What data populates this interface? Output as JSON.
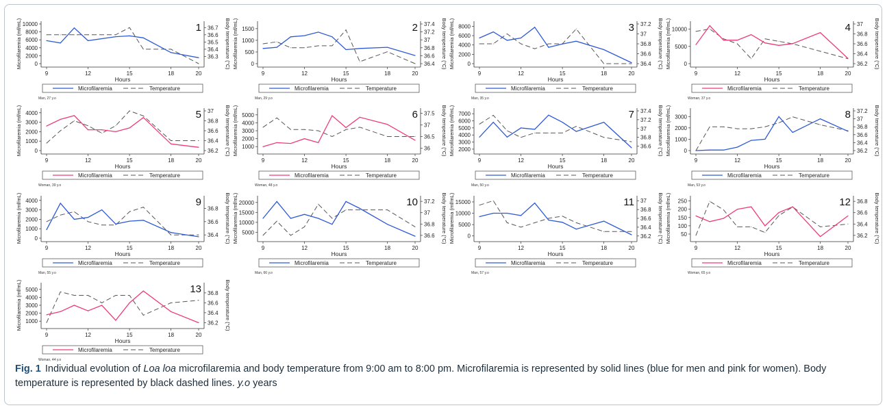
{
  "figure": {
    "caption_label": "Fig. 1",
    "caption_text_1": "Individual evolution of ",
    "caption_species": "Loa loa",
    "caption_text_2": " microfilaremia and body temperature from 9:00 am to 8:00 pm. Microfilaremia is represented by solid lines (blue for men and pink for women). Body temperature is represented by black dashed lines. ",
    "caption_yo": "y.o",
    "caption_text_3": " years"
  },
  "colors": {
    "men": "#2d59d6",
    "women": "#ef3a7a",
    "temperature": "#555555"
  },
  "chart_data": [
    {
      "type": "line",
      "panel": "1",
      "subject": "Man, 27 y.o",
      "sex": "man",
      "xlabel": "Hours",
      "ylabel": "Microfilaremia (mf/mL)",
      "y2label": "Body temperature (°C)",
      "legend": [
        "Microfilaremia",
        "Temperature"
      ],
      "x": [
        9,
        10,
        11,
        12,
        14,
        15,
        16,
        18,
        20
      ],
      "xticks": [
        9,
        12,
        15,
        18,
        20
      ],
      "ylim": [
        0,
        10000
      ],
      "yticks": [
        0,
        2000,
        4000,
        6000,
        8000,
        10000
      ],
      "y2lim": [
        36.2,
        36.75
      ],
      "y2ticks": [
        36.3,
        36.4,
        36.5,
        36.6,
        36.7
      ],
      "series": [
        {
          "name": "Microfilaremia",
          "values": [
            5800,
            5200,
            9000,
            5800,
            6800,
            7000,
            6500,
            2800,
            1500
          ]
        },
        {
          "name": "Temperature",
          "values": [
            36.6,
            36.6,
            36.6,
            36.6,
            36.6,
            36.7,
            36.4,
            36.4,
            36.2
          ]
        }
      ]
    },
    {
      "type": "line",
      "panel": "2",
      "subject": "Man, 29 y.o",
      "sex": "man",
      "xlabel": "Hours",
      "ylabel": "Microfilaremia (mf/mL)",
      "y2label": "Body temperature (°C)",
      "legend": [
        "Microfilaremia",
        "Temperature"
      ],
      "x": [
        9,
        10,
        11,
        12,
        13,
        14,
        15,
        16,
        18,
        20
      ],
      "xticks": [
        9,
        12,
        15,
        18,
        20
      ],
      "ylim": [
        0,
        1700
      ],
      "yticks": [
        0,
        500,
        1000,
        1500
      ],
      "y2lim": [
        36.4,
        37.4
      ],
      "y2ticks": [
        36.4,
        36.6,
        36.8,
        37,
        37.2,
        37.4
      ],
      "series": [
        {
          "name": "Microfilaremia",
          "values": [
            650,
            700,
            1150,
            1200,
            1350,
            1150,
            600,
            650,
            700,
            350
          ]
        },
        {
          "name": "Temperature",
          "values": [
            36.9,
            36.95,
            36.8,
            36.8,
            36.85,
            36.85,
            37.25,
            36.45,
            36.7,
            36.4
          ]
        }
      ]
    },
    {
      "type": "line",
      "panel": "3",
      "subject": "Man, 35 y.o",
      "sex": "man",
      "xlabel": "Hours",
      "ylabel": "Microfilaremia (mf/mL)",
      "y2label": "Body temperature (°C)",
      "legend": [
        "Microfilaremia",
        "Temperature"
      ],
      "x": [
        9,
        10,
        11,
        12,
        13,
        14,
        15,
        16,
        18,
        20
      ],
      "xticks": [
        9,
        12,
        15,
        18,
        20
      ],
      "ylim": [
        0,
        8500
      ],
      "yticks": [
        0,
        2000,
        4000,
        6000,
        8000
      ],
      "y2lim": [
        36.4,
        37.2
      ],
      "y2ticks": [
        36.4,
        36.6,
        36.8,
        37,
        37.2
      ],
      "series": [
        {
          "name": "Microfilaremia",
          "values": [
            5500,
            6800,
            5000,
            5500,
            7800,
            3500,
            4200,
            4800,
            3000,
            200
          ]
        },
        {
          "name": "Temperature",
          "values": [
            36.8,
            36.8,
            37,
            36.8,
            36.7,
            36.8,
            36.8,
            37.1,
            36.4,
            36.4
          ]
        }
      ]
    },
    {
      "type": "line",
      "panel": "4",
      "subject": "Woman, 37 y.o",
      "sex": "woman",
      "xlabel": "Hours",
      "ylabel": "Microfilaremia (mf/mL)",
      "y2label": "Body temperature (°C)",
      "legend": [
        "Microfilaremia",
        "Temperature"
      ],
      "x": [
        9,
        10,
        11,
        12,
        13,
        14,
        15,
        16,
        18,
        20
      ],
      "xticks": [
        9,
        12,
        15,
        18,
        20
      ],
      "ylim": [
        0,
        11500
      ],
      "yticks": [
        0,
        5000,
        10000
      ],
      "y2lim": [
        36.2,
        37
      ],
      "y2ticks": [
        36.2,
        36.4,
        36.6,
        36.8,
        37
      ],
      "series": [
        {
          "name": "Microfilaremia",
          "values": [
            5500,
            11000,
            6800,
            6800,
            8400,
            6000,
            5300,
            5800,
            9000,
            1500
          ]
        },
        {
          "name": "Temperature",
          "values": [
            36.85,
            36.9,
            36.7,
            36.6,
            36.3,
            36.7,
            36.65,
            36.6,
            36.45,
            36.3
          ]
        }
      ]
    },
    {
      "type": "line",
      "panel": "5",
      "subject": "Woman, 39 y.o",
      "sex": "woman",
      "xlabel": "Hours",
      "ylabel": "Microfilaremia (mf/mL)",
      "y2label": "Body temperature (°C)",
      "legend": [
        "Microfilaremia",
        "Temperature"
      ],
      "x": [
        9,
        10,
        11,
        12,
        13,
        14,
        15,
        16,
        18,
        20
      ],
      "xticks": [
        9,
        12,
        15,
        18,
        20
      ],
      "ylim": [
        0,
        4200
      ],
      "yticks": [
        0,
        1000,
        2000,
        3000,
        4000
      ],
      "y2lim": [
        36.2,
        37
      ],
      "y2ticks": [
        36.2,
        36.4,
        36.6,
        36.8,
        37
      ],
      "series": [
        {
          "name": "Microfilaremia",
          "values": [
            2600,
            3300,
            3700,
            2200,
            2200,
            2000,
            2400,
            3500,
            700,
            350
          ]
        },
        {
          "name": "Temperature",
          "values": [
            36.35,
            36.6,
            36.8,
            36.7,
            36.55,
            36.7,
            37,
            36.9,
            36.4,
            36.4
          ]
        }
      ]
    },
    {
      "type": "line",
      "panel": "6",
      "subject": "Woman, 48 y.o",
      "sex": "woman",
      "xlabel": "Hours",
      "ylabel": "Microfilaremia (mf/mL)",
      "y2label": "Body temperature (°C)",
      "legend": [
        "Microfilaremia",
        "Temperature"
      ],
      "x": [
        9,
        10,
        11,
        12,
        13,
        14,
        15,
        16,
        18,
        20
      ],
      "xticks": [
        9,
        12,
        15,
        18,
        20
      ],
      "ylim": [
        500,
        5500
      ],
      "yticks": [
        1000,
        2000,
        3000,
        4000,
        5000
      ],
      "y2lim": [
        35.9,
        37.6
      ],
      "y2ticks": [
        36,
        36.5,
        37,
        37.5
      ],
      "series": [
        {
          "name": "Microfilaremia",
          "values": [
            1000,
            1500,
            1400,
            2000,
            1500,
            4900,
            3400,
            4700,
            3800,
            1800
          ]
        },
        {
          "name": "Temperature",
          "values": [
            36.9,
            37.3,
            36.8,
            36.8,
            36.75,
            36.5,
            36.8,
            36.9,
            36.5,
            36.5
          ]
        }
      ]
    },
    {
      "type": "line",
      "panel": "7",
      "subject": "Man, 50 y.o",
      "sex": "man",
      "xlabel": "Hours",
      "ylabel": "Microfilaremia (mf/mL)",
      "y2label": "Body temperature (°C)",
      "legend": [
        "Microfilaremia",
        "Temperature"
      ],
      "x": [
        9,
        10,
        11,
        12,
        13,
        14,
        15,
        16,
        18,
        20
      ],
      "xticks": [
        9,
        12,
        15,
        18,
        20
      ],
      "ylim": [
        1800,
        7400
      ],
      "yticks": [
        2000,
        3000,
        4000,
        5000,
        6000,
        7000
      ],
      "y2lim": [
        36.5,
        37.4
      ],
      "y2ticks": [
        36.6,
        36.8,
        37,
        37.2,
        37.4
      ],
      "series": [
        {
          "name": "Microfilaremia",
          "values": [
            3700,
            5800,
            3700,
            5000,
            4800,
            6800,
            5800,
            4500,
            5800,
            2200
          ]
        },
        {
          "name": "Temperature",
          "values": [
            37.1,
            37.3,
            36.95,
            36.8,
            36.9,
            36.9,
            36.9,
            37.05,
            36.8,
            36.7
          ]
        }
      ]
    },
    {
      "type": "line",
      "panel": "8",
      "subject": "Man, 53 y.o",
      "sex": "man",
      "xlabel": "Hours",
      "ylabel": "Microfilaremia (mf/mL)",
      "y2label": "Body temperature (°C)",
      "legend": [
        "Microfilaremia",
        "Temperature"
      ],
      "x": [
        9,
        10,
        11,
        12,
        13,
        14,
        15,
        16,
        18,
        20
      ],
      "xticks": [
        9,
        12,
        15,
        18,
        20
      ],
      "ylim": [
        0,
        3500
      ],
      "yticks": [
        0,
        1000,
        2000,
        3000
      ],
      "y2lim": [
        36.2,
        37.2
      ],
      "y2ticks": [
        36.2,
        36.4,
        36.6,
        36.8,
        37,
        37.2
      ],
      "series": [
        {
          "name": "Microfilaremia",
          "values": [
            0,
            50,
            50,
            300,
            900,
            1000,
            3000,
            1600,
            2800,
            1700
          ]
        },
        {
          "name": "Temperature",
          "values": [
            36.2,
            36.8,
            36.8,
            36.75,
            36.75,
            36.8,
            36.9,
            37.05,
            36.85,
            36.7
          ]
        }
      ]
    },
    {
      "type": "line",
      "panel": "9",
      "subject": "Man, 55 y.o",
      "sex": "man",
      "xlabel": "Hours",
      "ylabel": "Microfilaremia (mf/mL)",
      "y2label": "Body temperature (°C)",
      "legend": [
        "Microfilaremia",
        "Temperature"
      ],
      "x": [
        9,
        10,
        11,
        12,
        13,
        14,
        15,
        16,
        18,
        20
      ],
      "xticks": [
        9,
        12,
        15,
        18,
        20
      ],
      "ylim": [
        0,
        4200
      ],
      "yticks": [
        0,
        1000,
        2000,
        3000,
        4000
      ],
      "y2lim": [
        36.35,
        36.95
      ],
      "y2ticks": [
        36.4,
        36.6,
        36.8
      ],
      "series": [
        {
          "name": "Microfilaremia",
          "values": [
            900,
            3700,
            2000,
            2200,
            3000,
            1500,
            1800,
            1900,
            600,
            150
          ]
        },
        {
          "name": "Temperature",
          "values": [
            36.6,
            36.7,
            36.75,
            36.6,
            36.55,
            36.55,
            36.75,
            36.82,
            36.4,
            36.4
          ]
        }
      ]
    },
    {
      "type": "line",
      "panel": "10",
      "subject": "Man, 66 y.o",
      "sex": "man",
      "xlabel": "Hours",
      "ylabel": "Microfilaremia (mf/mL)",
      "y2label": "Body temperature (°C)",
      "legend": [
        "Microfilaremia",
        "Temperature"
      ],
      "x": [
        9,
        10,
        11,
        12,
        13,
        14,
        15,
        16,
        18,
        20
      ],
      "xticks": [
        9,
        12,
        15,
        18,
        20
      ],
      "ylim": [
        2000,
        22000
      ],
      "yticks": [
        5000,
        10000,
        15000,
        20000
      ],
      "y2lim": [
        36.55,
        37.25
      ],
      "y2ticks": [
        36.6,
        36.8,
        37,
        37.2
      ],
      "series": [
        {
          "name": "Microfilaremia",
          "values": [
            12000,
            20500,
            12000,
            14000,
            12000,
            9000,
            20500,
            17000,
            9000,
            3000
          ]
        },
        {
          "name": "Temperature",
          "values": [
            36.6,
            36.85,
            36.6,
            36.75,
            37.15,
            36.9,
            37.05,
            37.05,
            37.05,
            36.75
          ]
        }
      ]
    },
    {
      "type": "line",
      "panel": "11",
      "subject": "Man, 57 y.o",
      "sex": "man",
      "xlabel": "Hours",
      "ylabel": "Microfilaremia (mf/mL)",
      "y2label": "Body temperature (°C)",
      "legend": [
        "Microfilaremia",
        "Temperature"
      ],
      "x": [
        9,
        10,
        11,
        12,
        13,
        14,
        15,
        16,
        18,
        20
      ],
      "xticks": [
        9,
        12,
        15,
        18,
        20
      ],
      "ylim": [
        -1000,
        16500
      ],
      "yticks": [
        0,
        5000,
        10000,
        15000
      ],
      "y2lim": [
        36.15,
        37.05
      ],
      "y2ticks": [
        36.2,
        36.4,
        36.6,
        36.8,
        37
      ],
      "series": [
        {
          "name": "Microfilaremia",
          "values": [
            8500,
            10000,
            10000,
            9000,
            14500,
            7000,
            6000,
            3000,
            6500,
            500
          ]
        },
        {
          "name": "Temperature",
          "values": [
            36.9,
            37,
            36.5,
            36.4,
            36.5,
            36.6,
            36.65,
            36.5,
            36.3,
            36.3
          ]
        }
      ]
    },
    {
      "type": "line",
      "panel": "12",
      "subject": "Woman, 65 y.o",
      "sex": "woman",
      "xlabel": "Hours",
      "ylabel": "Microfilaremia (mf/mL)",
      "y2label": "Body temperature (°C)",
      "legend": [
        "Microfilaremia",
        "Temperature"
      ],
      "x": [
        9,
        10,
        11,
        12,
        13,
        14,
        15,
        16,
        18,
        20
      ],
      "xticks": [
        9,
        12,
        15,
        18,
        20
      ],
      "ylim": [
        25,
        265
      ],
      "yticks": [
        50,
        100,
        150,
        200,
        250
      ],
      "y2lim": [
        36.15,
        36.85
      ],
      "y2ticks": [
        36.2,
        36.4,
        36.6,
        36.8
      ],
      "series": [
        {
          "name": "Microfilaremia",
          "values": [
            160,
            125,
            145,
            200,
            215,
            100,
            180,
            215,
            35,
            160
          ]
        },
        {
          "name": "Temperature",
          "values": [
            36.2,
            36.8,
            36.65,
            36.35,
            36.35,
            36.25,
            36.55,
            36.7,
            36.35,
            36.4
          ]
        }
      ]
    },
    {
      "type": "line",
      "panel": "13",
      "subject": "Woman, 44 y.o",
      "sex": "woman",
      "xlabel": "Hours",
      "ylabel": "Microfilaremia (mf/mL)",
      "y2label": "Body temperature (°C)",
      "legend": [
        "Microfilaremia",
        "Temperature"
      ],
      "x": [
        9,
        10,
        11,
        12,
        13,
        14,
        15,
        16,
        18,
        20
      ],
      "xticks": [
        9,
        12,
        15,
        18,
        20
      ],
      "ylim": [
        500,
        5500
      ],
      "yticks": [
        1000,
        2000,
        3000,
        4000,
        5000
      ],
      "y2lim": [
        36.15,
        36.95
      ],
      "y2ticks": [
        36.2,
        36.4,
        36.6,
        36.8
      ],
      "series": [
        {
          "name": "Microfilaremia",
          "values": [
            1800,
            2200,
            3000,
            2300,
            3000,
            1100,
            3300,
            4800,
            2200,
            800
          ]
        },
        {
          "name": "Temperature",
          "values": [
            36.2,
            36.82,
            36.75,
            36.75,
            36.6,
            36.75,
            36.75,
            36.35,
            36.6,
            36.65
          ]
        }
      ]
    }
  ]
}
